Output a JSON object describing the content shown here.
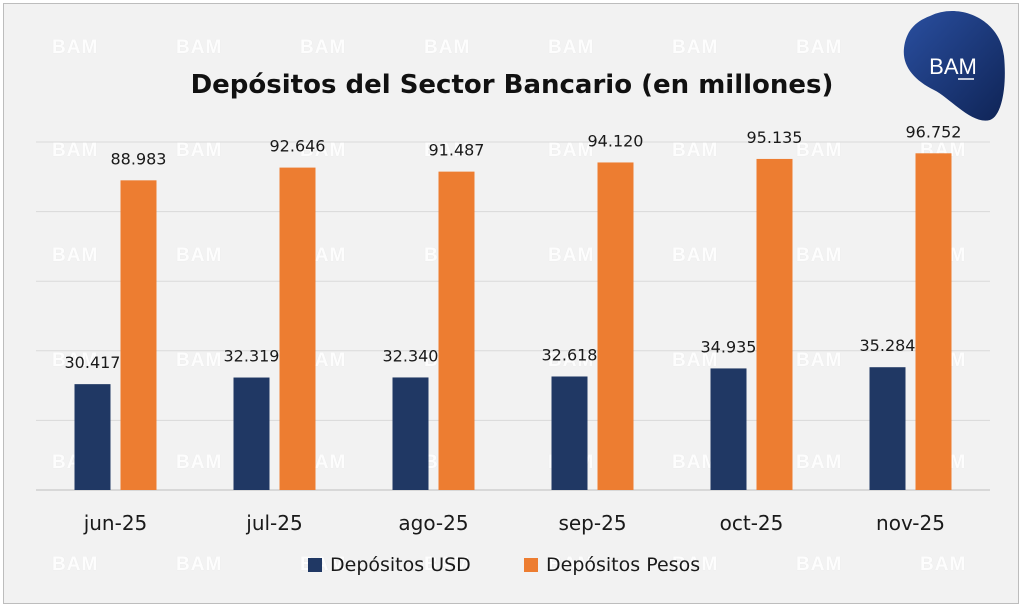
{
  "chart_data": {
    "type": "bar",
    "title": "Depósitos del Sector Bancario (en millones)",
    "categories": [
      "jun-25",
      "jul-25",
      "ago-25",
      "sep-25",
      "oct-25",
      "nov-25"
    ],
    "series": [
      {
        "name": "Depósitos USD",
        "color": "#203864",
        "values": [
          30417,
          32319,
          32340,
          32618,
          34935,
          35284
        ],
        "labels": [
          "30.417",
          "32.319",
          "32.340",
          "32.618",
          "34.935",
          "35.284"
        ]
      },
      {
        "name": "Depósitos Pesos",
        "color": "#ed7d31",
        "values": [
          88983,
          92646,
          91487,
          94120,
          95135,
          96752
        ],
        "labels": [
          "88.983",
          "92.646",
          "91.487",
          "94.120",
          "95.135",
          "96.752"
        ]
      }
    ],
    "ylim": [
      0,
      100000
    ],
    "y_tick_step": 20000,
    "grid": true,
    "y_axis_labels_shown": false,
    "legend_position": "bottom",
    "xlabel": "",
    "ylabel": ""
  },
  "branding": {
    "logo_text": "BAM",
    "watermark_text": "BAM",
    "logo_color": "#1f3a7a"
  }
}
